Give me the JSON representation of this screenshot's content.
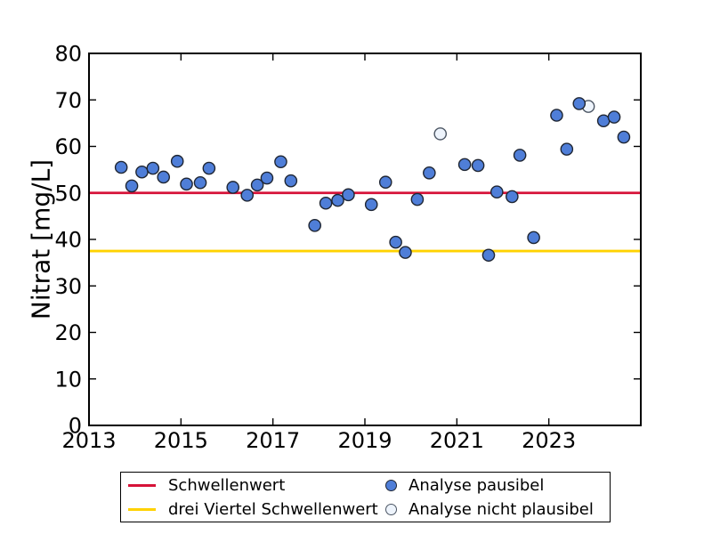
{
  "figure": {
    "background": "#ffffff",
    "frame_color": "#000000"
  },
  "chart_data": {
    "type": "scatter",
    "title": "",
    "xlabel": "",
    "ylabel": "Nitrat [mg/L]",
    "xlim": [
      2013,
      2025
    ],
    "ylim": [
      0,
      80
    ],
    "xticks": [
      2013,
      2015,
      2017,
      2019,
      2021,
      2023
    ],
    "yticks": [
      0,
      10,
      20,
      30,
      40,
      50,
      60,
      70,
      80
    ],
    "grid": false,
    "tick_direction": "in",
    "legend_position": "below-axes",
    "hlines": [
      {
        "name": "schwellenwert-line",
        "label": "Schwellenwert",
        "value": 50,
        "color": "#d61238"
      },
      {
        "name": "drei-viertel-schwellenwert-line",
        "label": "drei Viertel Schwellenwert",
        "value": 37.5,
        "color": "#ffd200"
      }
    ],
    "series": [
      {
        "name": "Analyse pausibel",
        "slug": "analyse-pausibel",
        "marker": "filled-circle",
        "fill": "#4f7ed8",
        "edge": "#1f2633",
        "points": [
          [
            2013.7,
            55.5
          ],
          [
            2013.93,
            51.5
          ],
          [
            2014.15,
            54.5
          ],
          [
            2014.39,
            55.3
          ],
          [
            2014.62,
            53.4
          ],
          [
            2014.92,
            56.8
          ],
          [
            2015.12,
            51.9
          ],
          [
            2015.42,
            52.2
          ],
          [
            2015.61,
            55.3
          ],
          [
            2016.13,
            51.2
          ],
          [
            2016.44,
            49.5
          ],
          [
            2016.66,
            51.7
          ],
          [
            2016.87,
            53.2
          ],
          [
            2017.17,
            56.7
          ],
          [
            2017.39,
            52.6
          ],
          [
            2017.91,
            43.0
          ],
          [
            2018.15,
            47.8
          ],
          [
            2018.41,
            48.4
          ],
          [
            2018.64,
            49.6
          ],
          [
            2019.14,
            47.5
          ],
          [
            2019.45,
            52.3
          ],
          [
            2019.67,
            39.4
          ],
          [
            2019.88,
            37.2
          ],
          [
            2020.14,
            48.6
          ],
          [
            2020.4,
            54.3
          ],
          [
            2021.17,
            56.1
          ],
          [
            2021.46,
            55.9
          ],
          [
            2021.69,
            36.6
          ],
          [
            2021.87,
            50.2
          ],
          [
            2022.2,
            49.2
          ],
          [
            2022.37,
            58.1
          ],
          [
            2022.67,
            40.4
          ],
          [
            2023.17,
            66.7
          ],
          [
            2023.39,
            59.4
          ],
          [
            2023.66,
            69.2
          ],
          [
            2024.19,
            65.5
          ],
          [
            2024.42,
            66.3
          ],
          [
            2024.63,
            62.0
          ]
        ]
      },
      {
        "name": "Analyse nicht plausibel",
        "slug": "analyse-nicht-plausibel",
        "marker": "open-circle",
        "fill": "#eef4fc",
        "edge": "#4b5563",
        "points": [
          [
            2020.64,
            62.7
          ],
          [
            2023.86,
            68.6
          ]
        ]
      }
    ]
  }
}
